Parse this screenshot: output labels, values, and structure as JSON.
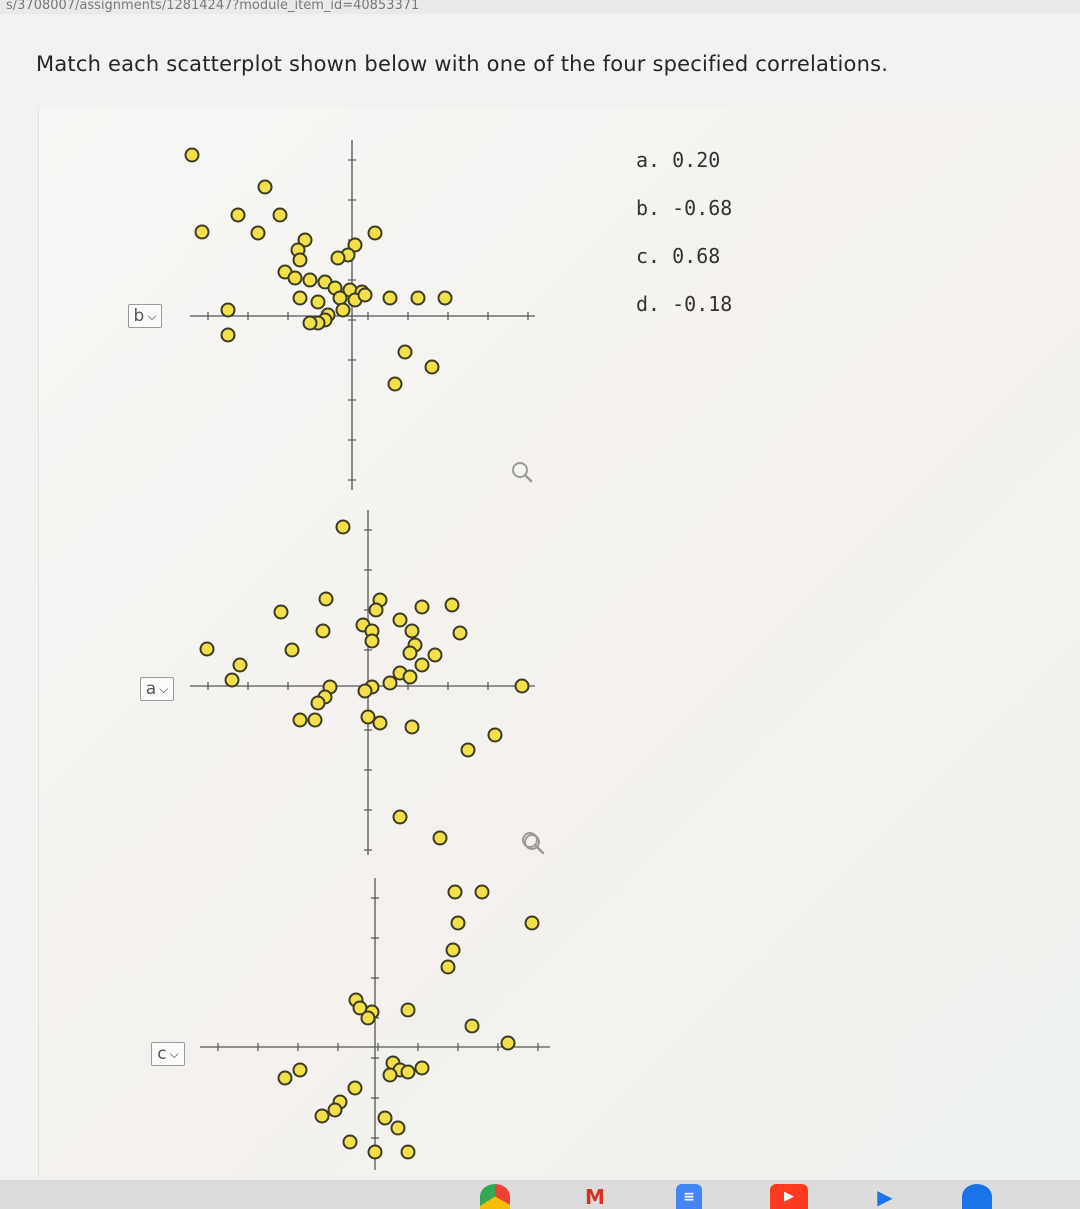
{
  "url_fragment": "s/3708007/assignments/12814247?module_item_id=40853371",
  "instruction": "Match each scatterplot shown below with one of the four specified correlations.",
  "choices": [
    {
      "label": "a. 0.20"
    },
    {
      "label": "b. -0.68"
    },
    {
      "label": "c. 0.68"
    },
    {
      "label": "d. -0.18"
    }
  ],
  "plots": [
    {
      "name": "scatterplot-1",
      "selected": "b"
    },
    {
      "name": "scatterplot-2",
      "selected": "a"
    },
    {
      "name": "scatterplot-3",
      "selected": "c"
    }
  ],
  "taskbar": {
    "icons": [
      "chrome-icon",
      "gmail-icon",
      "docs-icon",
      "youtube-icon",
      "play-store-icon",
      "chat-icon"
    ]
  },
  "colors": {
    "point_fill": "#f2e04a",
    "point_stroke": "#3b3b24",
    "axis": "#555555"
  }
}
